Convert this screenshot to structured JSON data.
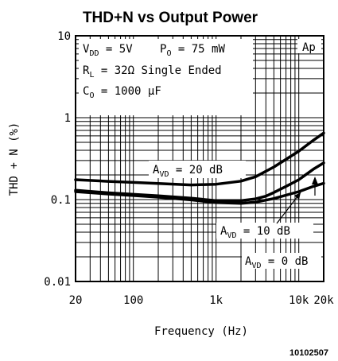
{
  "chart_data": {
    "type": "line",
    "title": "THD+N vs Output Power",
    "xlabel": "Frequency (Hz)",
    "ylabel": "THD + N (%)",
    "x_scale": "log",
    "y_scale": "log",
    "xlim": [
      20,
      20000
    ],
    "ylim": [
      0.01,
      10
    ],
    "x_ticks": [
      {
        "value": 20,
        "label": "20"
      },
      {
        "value": 100,
        "label": "100"
      },
      {
        "value": 1000,
        "label": "1k"
      },
      {
        "value": 10000,
        "label": "10k"
      },
      {
        "value": 20000,
        "label": "20k"
      }
    ],
    "y_ticks": [
      {
        "value": 0.01,
        "label": "0.01"
      },
      {
        "value": 0.1,
        "label": "0.1"
      },
      {
        "value": 1,
        "label": "1"
      },
      {
        "value": 10,
        "label": "10"
      }
    ],
    "grid": true,
    "conditions": {
      "vdd": {
        "main": "V",
        "sub": "DD",
        "rest": " = 5V"
      },
      "po": {
        "main": "P",
        "sub": "O",
        "rest": " = 75 mW"
      },
      "rl": {
        "main": "R",
        "sub": "L",
        "rest": " = 32Ω Single Ended"
      },
      "co": {
        "main": "C",
        "sub": "O",
        "rest": " = 1000 μF"
      }
    },
    "corner_label": "Ap",
    "series": [
      {
        "gain_label": {
          "main": "A",
          "sub": "VD",
          "rest": " = 20 dB"
        },
        "x": [
          20,
          50,
          100,
          200,
          500,
          1000,
          2000,
          3000,
          5000,
          7000,
          10000,
          15000,
          20000
        ],
        "y": [
          0.175,
          0.167,
          0.162,
          0.157,
          0.151,
          0.154,
          0.168,
          0.19,
          0.25,
          0.31,
          0.39,
          0.53,
          0.65
        ]
      },
      {
        "gain_label": {
          "main": "A",
          "sub": "VD",
          "rest": " = 10 dB"
        },
        "x": [
          20,
          50,
          100,
          200,
          500,
          1000,
          2000,
          3000,
          4000,
          5000,
          7000,
          10000,
          15000,
          20000
        ],
        "y": [
          0.13,
          0.121,
          0.116,
          0.111,
          0.104,
          0.097,
          0.097,
          0.102,
          0.11,
          0.122,
          0.145,
          0.175,
          0.235,
          0.28
        ]
      },
      {
        "gain_label": {
          "main": "A",
          "sub": "VD",
          "rest": " = 0 dB"
        },
        "x": [
          20,
          50,
          100,
          200,
          500,
          1000,
          2000,
          3000,
          5000,
          10000,
          15000,
          20000
        ],
        "y": [
          0.125,
          0.117,
          0.112,
          0.107,
          0.099,
          0.092,
          0.09,
          0.093,
          0.103,
          0.125,
          0.145,
          0.158
        ]
      }
    ]
  },
  "figure_number": "10102507"
}
